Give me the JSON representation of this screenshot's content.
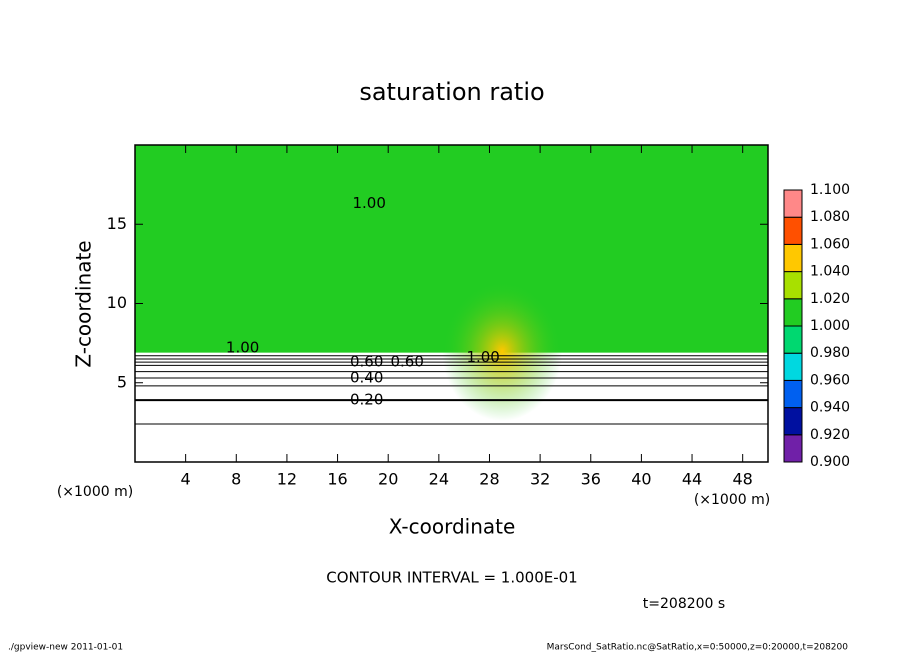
{
  "chart_data": {
    "type": "contour",
    "title": "saturation ratio",
    "x_label": "X-coordinate",
    "y_label": "Z-coordinate",
    "x_unit_label": "(×1000 m)",
    "y_unit_label": "(×1000 m)",
    "xlim": [
      0,
      50
    ],
    "xticks": [
      4,
      8,
      12,
      16,
      20,
      24,
      28,
      32,
      36,
      40,
      44,
      48
    ],
    "ylim": [
      0,
      20
    ],
    "yticks": [
      5,
      10,
      15
    ],
    "field_value": 1.0,
    "cloud_base_z": 6.9,
    "peak_value": 1.05,
    "peak_x": 29,
    "peak_z": 7.0,
    "contour_levels": [
      0.1,
      0.2,
      0.3,
      0.4,
      0.5,
      0.6,
      0.7,
      0.8,
      0.9
    ],
    "contour_z": [
      2.4,
      3.9,
      4.8,
      5.3,
      5.7,
      6.1,
      6.3,
      6.5,
      6.7
    ],
    "contour_labels": [
      {
        "value": 1,
        "label": "1.00",
        "x": 18.5,
        "z": 16.3
      },
      {
        "value": 1,
        "label": "1.00",
        "x": 8.5,
        "z": 7.2
      },
      {
        "value": 0.6,
        "label": "0.60",
        "x": 18.3,
        "z": 6.3
      },
      {
        "value": 0.6,
        "label": "0.60",
        "x": 21.5,
        "z": 6.3
      },
      {
        "value": 1,
        "label": "1.00",
        "x": 27.5,
        "z": 6.6
      },
      {
        "value": 0.4,
        "label": "0.40",
        "x": 18.3,
        "z": 5.3
      },
      {
        "value": 0.2,
        "label": "0.20",
        "x": 18.3,
        "z": 3.9
      }
    ],
    "colorbar": {
      "ticks": [
        {
          "value": 0.9,
          "label": "0.900"
        },
        {
          "value": 0.92,
          "label": "0.920"
        },
        {
          "value": 0.94,
          "label": "0.940"
        },
        {
          "value": 0.96,
          "label": "0.960"
        },
        {
          "value": 0.98,
          "label": "0.980"
        },
        {
          "value": 1.0,
          "label": "1.000"
        },
        {
          "value": 1.02,
          "label": "1.020"
        },
        {
          "value": 1.04,
          "label": "1.040"
        },
        {
          "value": 1.06,
          "label": "1.060"
        },
        {
          "value": 1.08,
          "label": "1.080"
        },
        {
          "value": 1.1,
          "label": "1.100"
        }
      ],
      "colors": [
        "#7020a8",
        "#0010a0",
        "#0060f0",
        "#00d8e0",
        "#00d870",
        "#22cc22",
        "#a8e000",
        "#ffc800",
        "#ff5000",
        "#ff8888"
      ]
    },
    "contour_interval_text": "CONTOUR INTERVAL = 1.000E-01",
    "time_text": "t=208200 s",
    "footer_left": "./gpview-new   2011-01-01",
    "footer_right": "MarsCond_SatRatio.nc@SatRatio,x=0:50000,z=0:20000,t=208200"
  }
}
